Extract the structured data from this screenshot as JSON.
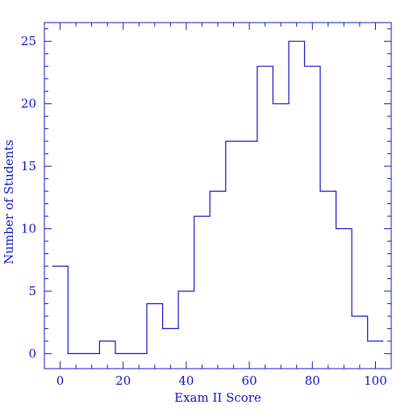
{
  "chart_data": {
    "type": "bar",
    "style": "step-histogram",
    "title": "",
    "xlabel": "Exam II Score",
    "ylabel": "Number of Students",
    "xlim": [
      -5,
      105
    ],
    "ylim": [
      -1.2,
      26.5
    ],
    "x_ticks": [
      0,
      20,
      40,
      60,
      80,
      100
    ],
    "y_ticks": [
      0,
      5,
      10,
      15,
      20,
      25
    ],
    "bin_width": 5,
    "bins": [
      {
        "center": 0,
        "count": 7
      },
      {
        "center": 5,
        "count": 0
      },
      {
        "center": 10,
        "count": 0
      },
      {
        "center": 15,
        "count": 1
      },
      {
        "center": 20,
        "count": 0
      },
      {
        "center": 25,
        "count": 0
      },
      {
        "center": 30,
        "count": 4
      },
      {
        "center": 35,
        "count": 2
      },
      {
        "center": 40,
        "count": 5
      },
      {
        "center": 45,
        "count": 11
      },
      {
        "center": 50,
        "count": 13
      },
      {
        "center": 55,
        "count": 17
      },
      {
        "center": 60,
        "count": 17
      },
      {
        "center": 65,
        "count": 23
      },
      {
        "center": 70,
        "count": 20
      },
      {
        "center": 75,
        "count": 25
      },
      {
        "center": 80,
        "count": 23
      },
      {
        "center": 85,
        "count": 13
      },
      {
        "center": 90,
        "count": 10
      },
      {
        "center": 95,
        "count": 3
      },
      {
        "center": 100,
        "count": 1
      }
    ],
    "grid": false,
    "legend": "none",
    "colors": {
      "ink": "#1010c8"
    }
  }
}
